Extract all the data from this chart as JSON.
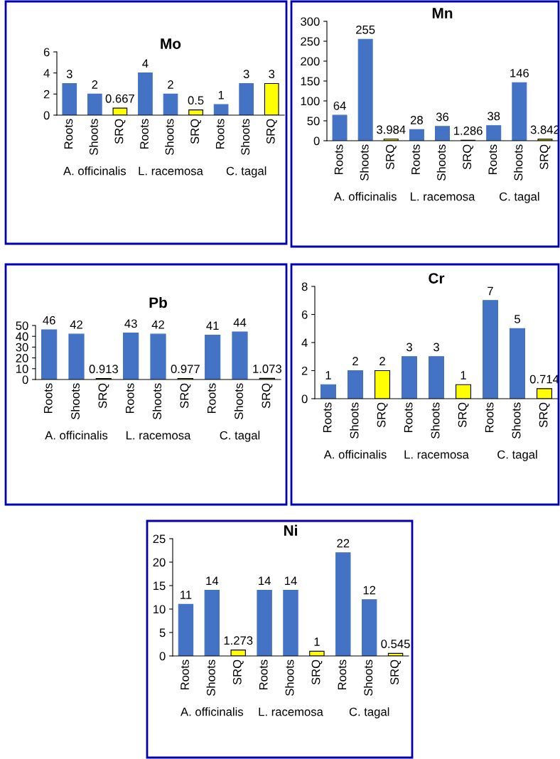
{
  "chart_data": [
    {
      "type": "bar",
      "title": "Mo",
      "categories": [
        "Roots",
        "Shoots",
        "SRQ",
        "Roots",
        "Shoots",
        "SRQ",
        "Roots",
        "Shoots",
        "SRQ"
      ],
      "annotations": [
        "A. officinalis",
        "L. racemosa",
        "C. tagal"
      ],
      "values": [
        3,
        2,
        0.667,
        4,
        2,
        0.5,
        1,
        3,
        3
      ],
      "colors": [
        "#4472c4",
        "#4472c4",
        "#ffff00",
        "#4472c4",
        "#4472c4",
        "#ffff00",
        "#4472c4",
        "#4472c4",
        "#ffff00"
      ],
      "ylim": [
        0,
        6
      ],
      "yticks": [
        0,
        2,
        4,
        6
      ],
      "data_labels": true,
      "grid": false,
      "legend": false
    },
    {
      "type": "bar",
      "title": "Mn",
      "categories": [
        "Roots",
        "Shoots",
        "SRQ",
        "Roots",
        "Shoots",
        "SRQ",
        "Roots",
        "Shoots",
        "SRQ"
      ],
      "annotations": [
        "A. officinalis",
        "L. racemosa",
        "C. tagal"
      ],
      "values": [
        64,
        255,
        3.984,
        28,
        36,
        1.286,
        38,
        146,
        3.842
      ],
      "colors": [
        "#4472c4",
        "#4472c4",
        "#ffff00",
        "#4472c4",
        "#4472c4",
        "#ffff00",
        "#4472c4",
        "#4472c4",
        "#ffff00"
      ],
      "ylim": [
        0,
        300
      ],
      "yticks": [
        0,
        50,
        100,
        150,
        200,
        250,
        300
      ],
      "data_labels": true,
      "grid": false,
      "legend": false
    },
    {
      "type": "bar",
      "title": "Pb",
      "categories": [
        "Roots",
        "Shoots",
        "SRQ",
        "Roots",
        "Shoots",
        "SRQ",
        "Roots",
        "Shoots",
        "SRQ"
      ],
      "annotations": [
        "A. officinalis",
        "L. racemosa",
        "C. tagal"
      ],
      "values": [
        46,
        42,
        0.913,
        43,
        42,
        0.977,
        41,
        44,
        1.073
      ],
      "colors": [
        "#4472c4",
        "#4472c4",
        "#ffff00",
        "#4472c4",
        "#4472c4",
        "#ffff00",
        "#4472c4",
        "#4472c4",
        "#ffff00"
      ],
      "ylim": [
        0,
        50
      ],
      "yticks": [
        0,
        10,
        20,
        30,
        40,
        50
      ],
      "data_labels": true,
      "grid": false,
      "legend": false
    },
    {
      "type": "bar",
      "title": "Cr",
      "categories": [
        "Roots",
        "Shoots",
        "SRQ",
        "Roots",
        "Shoots",
        "SRQ",
        "Roots",
        "Shoots",
        "SRQ"
      ],
      "annotations": [
        "A. officinalis",
        "L. racemosa",
        "C. tagal"
      ],
      "values": [
        1,
        2,
        2,
        3,
        3,
        1,
        7,
        5,
        0.714
      ],
      "colors": [
        "#4472c4",
        "#4472c4",
        "#ffff00",
        "#4472c4",
        "#4472c4",
        "#ffff00",
        "#4472c4",
        "#4472c4",
        "#ffff00"
      ],
      "ylim": [
        0,
        8
      ],
      "yticks": [
        0,
        2,
        4,
        6,
        8
      ],
      "data_labels": true,
      "grid": false,
      "legend": false
    },
    {
      "type": "bar",
      "title": "Ni",
      "categories": [
        "Roots",
        "Shoots",
        "SRQ",
        "Roots",
        "Shoots",
        "SRQ",
        "Roots",
        "Shoots",
        "SRQ"
      ],
      "annotations": [
        "A. officinalis",
        "L. racemosa",
        "C. tagal"
      ],
      "values": [
        11,
        14,
        1.273,
        14,
        14,
        1,
        22,
        12,
        0.545
      ],
      "colors": [
        "#4472c4",
        "#4472c4",
        "#ffff00",
        "#4472c4",
        "#4472c4",
        "#ffff00",
        "#4472c4",
        "#4472c4",
        "#ffff00"
      ],
      "ylim": [
        0,
        25
      ],
      "yticks": [
        0,
        5,
        10,
        15,
        20,
        25
      ],
      "data_labels": true,
      "grid": false,
      "legend": false
    }
  ]
}
